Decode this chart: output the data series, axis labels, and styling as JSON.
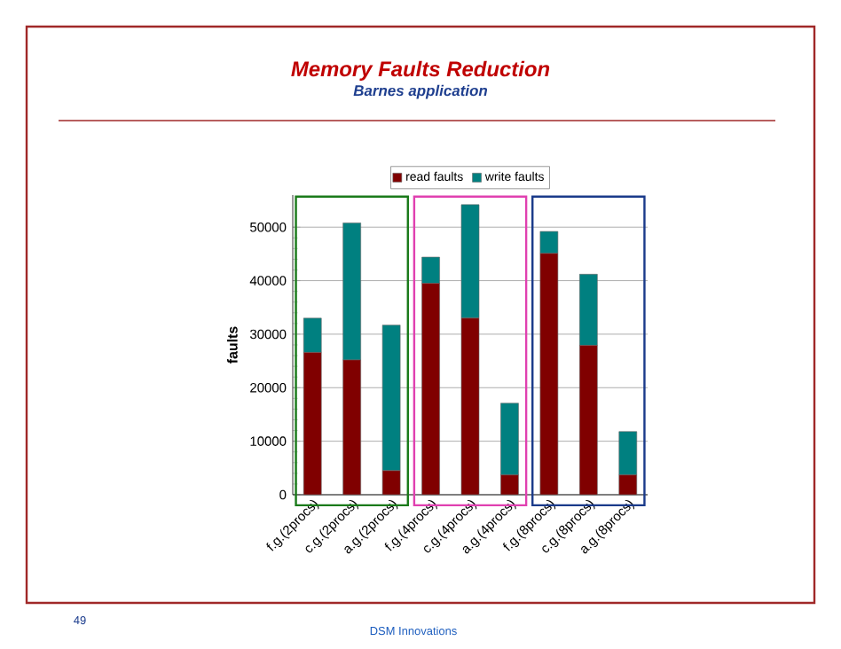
{
  "chart_data": {
    "type": "bar",
    "stacked": true,
    "title": "Memory Faults Reduction",
    "subtitle": "Barnes application",
    "ylabel": "faults",
    "categories": [
      "f.g.(2procs)",
      "c.g.(2procs)",
      "a.g.(2procs)",
      "f.g.(4procs)",
      "c.g.(4procs)",
      "a.g.(4procs)",
      "f.g.(8procs)",
      "c.g.(8procs)",
      "a.g.(8procs)"
    ],
    "series": [
      {
        "name": "read faults",
        "color": "#800000",
        "values": [
          26600,
          25200,
          4500,
          39500,
          33000,
          3700,
          45100,
          27900,
          3700
        ]
      },
      {
        "name": "write faults",
        "color": "#008080",
        "values": [
          6400,
          25600,
          27200,
          4900,
          21200,
          13400,
          4100,
          13300,
          8100
        ]
      }
    ],
    "ylim": [
      0,
      56000
    ],
    "yticks": [
      0,
      10000,
      20000,
      30000,
      40000,
      50000
    ],
    "grid": "y",
    "legend": "top",
    "annotations": [
      "DSM Innovations",
      "49"
    ]
  }
}
